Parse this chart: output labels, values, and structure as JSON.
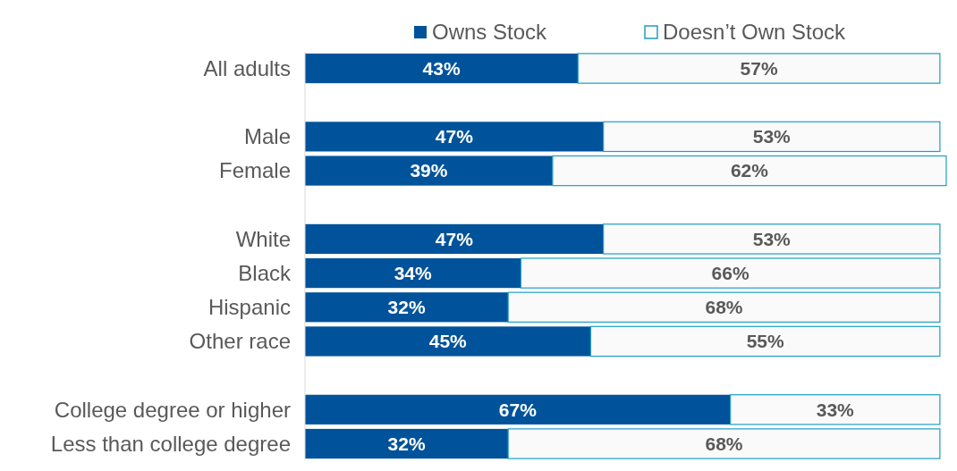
{
  "chart_data": {
    "type": "bar",
    "orientation": "horizontal",
    "stacked": true,
    "categories": [
      "All adults",
      null,
      "Male",
      "Female",
      null,
      "White",
      "Black",
      "Hispanic",
      "Other race",
      null,
      "College degree or higher",
      "Less than college degree"
    ],
    "series": [
      {
        "name": "Owns Stock",
        "color": "#00539b",
        "values": [
          43,
          null,
          47,
          39,
          null,
          47,
          34,
          32,
          45,
          null,
          67,
          32
        ],
        "value_labels": [
          "43%",
          null,
          "47%",
          "39%",
          null,
          "47%",
          "34%",
          "32%",
          "45%",
          null,
          "67%",
          "32%"
        ]
      },
      {
        "name": "Doesn’t Own Stock",
        "color": "#fafafa",
        "values": [
          57,
          null,
          53,
          62,
          null,
          53,
          66,
          68,
          55,
          null,
          33,
          68
        ],
        "value_labels": [
          "57%",
          null,
          "53%",
          "62%",
          null,
          "53%",
          "66%",
          "68%",
          "55%",
          null,
          "33%",
          "68%"
        ]
      }
    ],
    "xlim": [
      0,
      101
    ],
    "tick_labels": "y",
    "legend": "top"
  }
}
